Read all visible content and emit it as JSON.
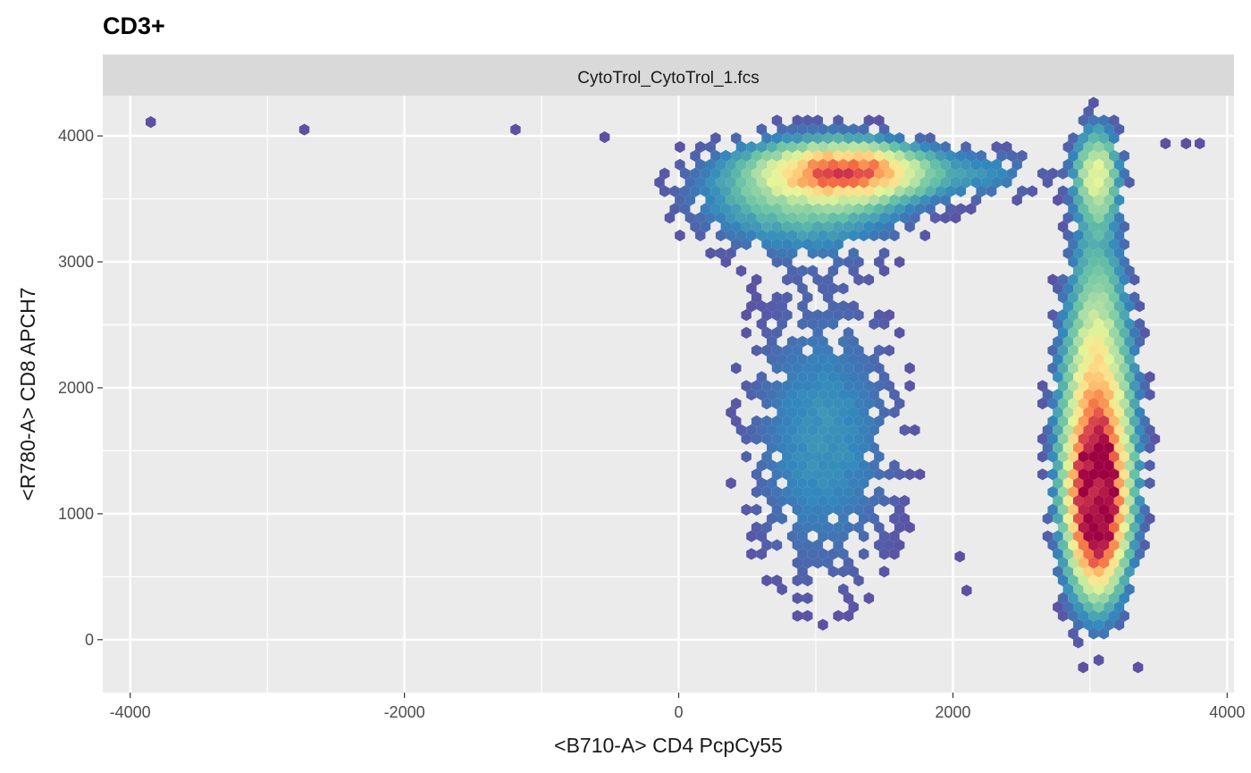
{
  "chart_data": {
    "type": "hexbin",
    "title": "CD3+",
    "facet_label": "CytoTrol_CytoTrol_1.fcs",
    "xlabel": "<B710-A> CD4 PcpCy55",
    "ylabel": "<R780-A> CD8 APCH7",
    "xlim": [
      -4200,
      4050
    ],
    "ylim": [
      -420,
      4320
    ],
    "x_ticks": [
      -4000,
      -2000,
      0,
      2000,
      4000
    ],
    "x_tick_labels": [
      "-4000",
      "-2000",
      "0",
      "2000",
      "4000"
    ],
    "y_ticks": [
      0,
      1000,
      2000,
      3000,
      4000
    ],
    "y_tick_labels": [
      "0",
      "1000",
      "2000",
      "3000",
      "4000"
    ],
    "grid": true,
    "legend": "none",
    "colormap": [
      "#5e4fa2",
      "#3288bd",
      "#66c2a5",
      "#abdda4",
      "#e6f598",
      "#fee08b",
      "#fdae61",
      "#f46d43",
      "#d53e4f",
      "#9e0142"
    ],
    "clusters": [
      {
        "name": "",
        "cx": 1250,
        "cy": 3720,
        "sx": 380,
        "sy": 140,
        "peak": 0.68
      },
      {
        "name": "",
        "cx": 900,
        "cy": 3550,
        "sx": 550,
        "sy": 300,
        "peak": 0.28
      },
      {
        "name": "",
        "cx": 1050,
        "cy": 1600,
        "sx": 420,
        "sy": 850,
        "peak": 0.16
      },
      {
        "name": "",
        "cx": 3050,
        "cy": 1050,
        "sx": 130,
        "sy": 420,
        "peak": 1.0
      },
      {
        "name": "",
        "cx": 3050,
        "cy": 1600,
        "sx": 180,
        "sy": 700,
        "peak": 0.55
      },
      {
        "name": "",
        "cx": 3050,
        "cy": 3700,
        "sx": 110,
        "sy": 250,
        "peak": 0.42
      },
      {
        "name": "",
        "cx": 3050,
        "cy": 2600,
        "sx": 140,
        "sy": 650,
        "peak": 0.2
      },
      {
        "name": "",
        "cx": 2300,
        "cy": 3700,
        "sx": 300,
        "sy": 150,
        "peak": 0.12
      }
    ],
    "isolated_points": [
      [
        -3850,
        4110
      ],
      [
        -2730,
        4050
      ],
      [
        -1190,
        4050
      ],
      [
        -540,
        3990
      ],
      [
        3550,
        3940
      ],
      [
        3700,
        3940
      ],
      [
        3800,
        3940
      ],
      [
        2950,
        -220
      ],
      [
        3350,
        -220
      ],
      [
        2050,
        660
      ],
      [
        2100,
        390
      ]
    ]
  }
}
